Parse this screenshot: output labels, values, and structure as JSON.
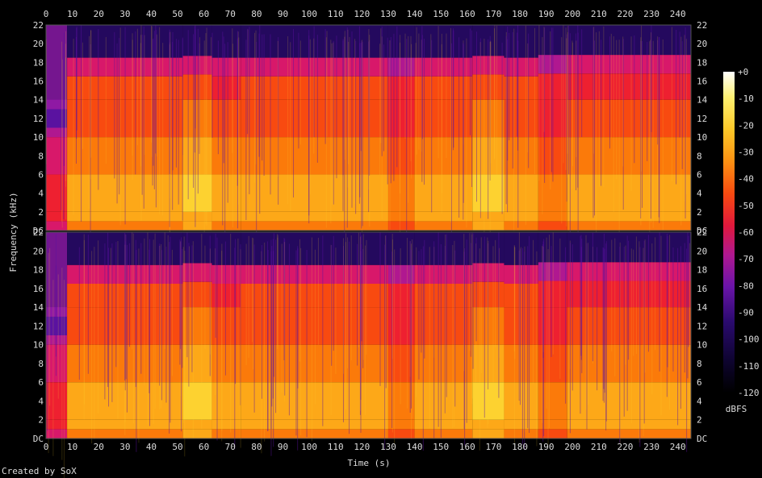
{
  "chart_data": {
    "type": "heatmap",
    "title": "",
    "xlabel": "Time (s)",
    "ylabel": "Frequency (kHz)",
    "xlim": [
      0,
      245
    ],
    "ylim": [
      0,
      22
    ],
    "x_ticks": [
      "0",
      "10",
      "20",
      "30",
      "40",
      "50",
      "60",
      "70",
      "80",
      "90",
      "100",
      "110",
      "120",
      "130",
      "140",
      "150",
      "160",
      "170",
      "180",
      "190",
      "200",
      "210",
      "220",
      "230",
      "240"
    ],
    "y_ticks": [
      "DC",
      "2",
      "4",
      "6",
      "8",
      "10",
      "12",
      "14",
      "16",
      "18",
      "20",
      "22"
    ],
    "channels": [
      "channel 1",
      "channel 2"
    ],
    "colorbar": {
      "label": "dBFS",
      "ticks": [
        "+0",
        "-10",
        "-20",
        "-30",
        "-40",
        "-50",
        "-60",
        "-70",
        "-80",
        "-90",
        "-100",
        "-110",
        "-120"
      ],
      "range": [
        -120,
        0
      ]
    },
    "segments": [
      {
        "t0": 0,
        "t1": 8,
        "cutoff_khz": 13,
        "level_db": -75
      },
      {
        "t0": 8,
        "t1": 52,
        "cutoff_khz": 18.5,
        "level_db": -45
      },
      {
        "t0": 52,
        "t1": 63,
        "cutoff_khz": 18.7,
        "level_db": -42
      },
      {
        "t0": 63,
        "t1": 74,
        "cutoff_khz": 18.5,
        "level_db": -48
      },
      {
        "t0": 74,
        "t1": 130,
        "cutoff_khz": 18.5,
        "level_db": -45
      },
      {
        "t0": 130,
        "t1": 140,
        "cutoff_khz": 18.5,
        "level_db": -55
      },
      {
        "t0": 140,
        "t1": 162,
        "cutoff_khz": 18.5,
        "level_db": -45
      },
      {
        "t0": 162,
        "t1": 174,
        "cutoff_khz": 18.7,
        "level_db": -42
      },
      {
        "t0": 174,
        "t1": 187,
        "cutoff_khz": 18.5,
        "level_db": -45
      },
      {
        "t0": 187,
        "t1": 198,
        "cutoff_khz": 18.8,
        "level_db": -55
      },
      {
        "t0": 198,
        "t1": 245,
        "cutoff_khz": 18.8,
        "level_db": -48
      }
    ],
    "colormap": [
      "#000000",
      "#0e0430",
      "#2a0a6e",
      "#5a12a0",
      "#8a1aa8",
      "#b01890",
      "#d8186a",
      "#ee2030",
      "#f84a10",
      "#fb7a0a",
      "#fda818",
      "#fdd230",
      "#fef070",
      "#ffffe0"
    ]
  },
  "credit": "Created by SoX"
}
